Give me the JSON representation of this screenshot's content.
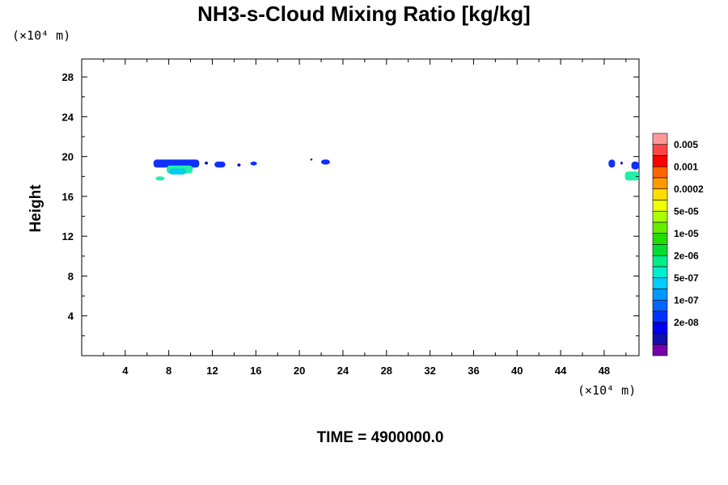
{
  "chart_data": {
    "type": "heatmap",
    "title": "NH3-s-Cloud Mixing Ratio [kg/kg]",
    "ylabel": "Height",
    "xunit": "(×10⁴ m)",
    "yunit": "(×10⁴ m)",
    "xlim": [
      0,
      51.2
    ],
    "ylim": [
      0,
      29.8
    ],
    "xticks": [
      4,
      8,
      12,
      16,
      20,
      24,
      28,
      32,
      36,
      40,
      44,
      48
    ],
    "yticks": [
      4,
      8,
      12,
      16,
      20,
      24,
      28
    ],
    "colorbar": {
      "labels": [
        "0.005",
        "0.001",
        "0.0002",
        "5e-05",
        "1e-05",
        "2e-06",
        "5e-07",
        "1e-07",
        "2e-08"
      ],
      "colors": [
        "#ff9999",
        "#ff4444",
        "#ff0000",
        "#ff6600",
        "#ff9900",
        "#ffdd00",
        "#eeff00",
        "#aaff00",
        "#66ee00",
        "#22dd00",
        "#00dd33",
        "#00ee88",
        "#00eecc",
        "#00ccff",
        "#0099ff",
        "#0066ff",
        "#0033ff",
        "#0000ee",
        "#1111aa",
        "#7700aa"
      ]
    },
    "cloud_patches": [
      {
        "x": [
          6.6,
          10.8
        ],
        "y": [
          18.9,
          19.7
        ],
        "level": "1e-07"
      },
      {
        "x": [
          7.8,
          10.2
        ],
        "y": [
          18.3,
          19.1
        ],
        "level": "2e-06"
      },
      {
        "x": [
          8.0,
          9.6
        ],
        "y": [
          18.2,
          18.8
        ],
        "level": "5e-07"
      },
      {
        "x": [
          6.8,
          7.6
        ],
        "y": [
          17.6,
          18.0
        ],
        "level": "2e-06"
      },
      {
        "x": [
          11.3,
          11.6
        ],
        "y": [
          19.2,
          19.5
        ],
        "level": "2e-08"
      },
      {
        "x": [
          12.2,
          13.2
        ],
        "y": [
          18.9,
          19.5
        ],
        "level": "1e-07"
      },
      {
        "x": [
          14.3,
          14.6
        ],
        "y": [
          19.0,
          19.3
        ],
        "level": "2e-08"
      },
      {
        "x": [
          15.5,
          16.1
        ],
        "y": [
          19.1,
          19.5
        ],
        "level": "1e-07"
      },
      {
        "x": [
          21.0,
          21.2
        ],
        "y": [
          19.6,
          19.8
        ],
        "level": "2e-08"
      },
      {
        "x": [
          22.0,
          22.8
        ],
        "y": [
          19.2,
          19.7
        ],
        "level": "1e-07"
      },
      {
        "x": [
          48.4,
          49.0
        ],
        "y": [
          18.9,
          19.7
        ],
        "level": "1e-07"
      },
      {
        "x": [
          49.5,
          49.7
        ],
        "y": [
          19.2,
          19.5
        ],
        "level": "2e-08"
      },
      {
        "x": [
          50.5,
          51.2
        ],
        "y": [
          18.7,
          19.5
        ],
        "level": "1e-07"
      },
      {
        "x": [
          49.9,
          51.2
        ],
        "y": [
          17.6,
          18.5
        ],
        "level": "2e-06"
      }
    ]
  },
  "time_label": "TIME = 4900000.0"
}
